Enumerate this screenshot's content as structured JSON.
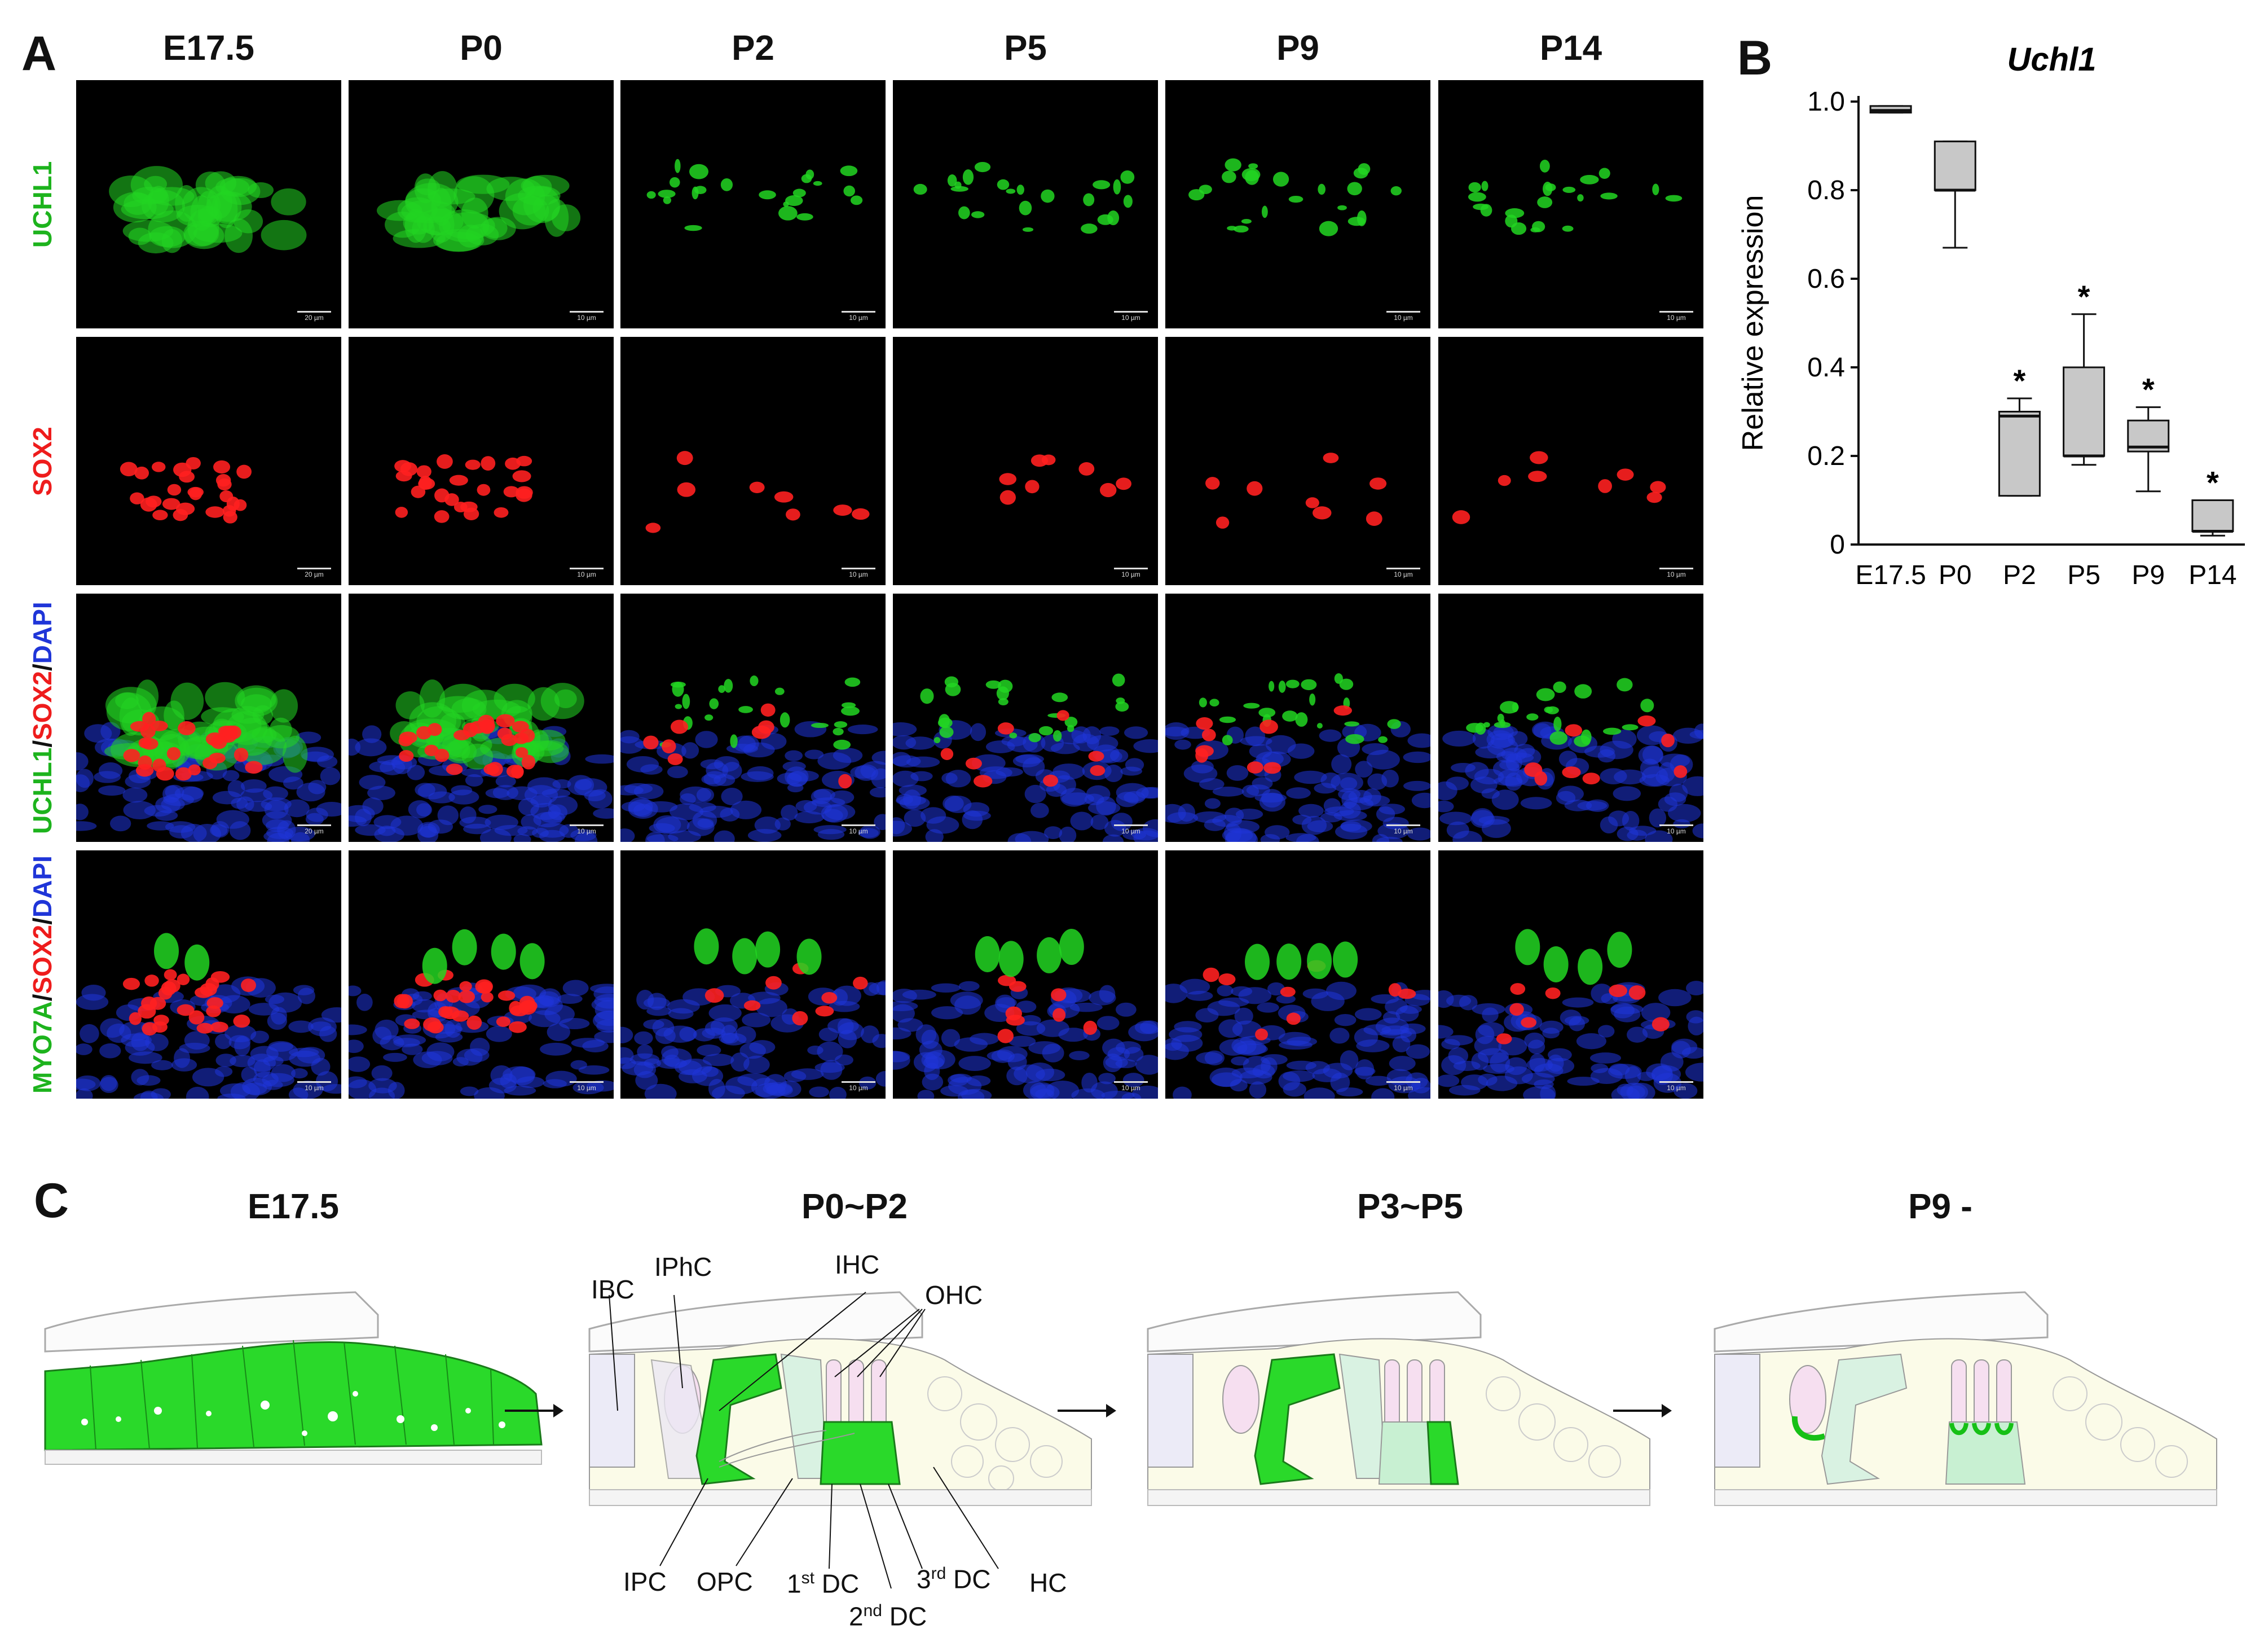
{
  "panel_labels": {
    "a": "A",
    "b": "B",
    "c": "C"
  },
  "columns": [
    "E17.5",
    "P0",
    "P2",
    "P5",
    "P9",
    "P14"
  ],
  "rows": [
    {
      "parts": [
        {
          "text": "UCHL1",
          "color": "#1db31d"
        }
      ]
    },
    {
      "parts": [
        {
          "text": "SOX2",
          "color": "#ee1c1c"
        }
      ]
    },
    {
      "parts": [
        {
          "text": "UCHL1",
          "color": "#1db31d"
        },
        {
          "text": "/",
          "color": "#111111"
        },
        {
          "text": "SOX2",
          "color": "#ee1c1c"
        },
        {
          "text": "/",
          "color": "#111111"
        },
        {
          "text": "DAPI",
          "color": "#1f35d8"
        }
      ]
    },
    {
      "parts": [
        {
          "text": "MYO7A",
          "color": "#1db31d"
        },
        {
          "text": "/",
          "color": "#111111"
        },
        {
          "text": "SOX2",
          "color": "#ee1c1c"
        },
        {
          "text": "/",
          "color": "#111111"
        },
        {
          "text": "DAPI",
          "color": "#1f35d8"
        }
      ]
    }
  ],
  "scale_bars": [
    [
      "20 µm",
      "10 µm",
      "10 µm",
      "10 µm",
      "10 µm",
      "10 µm"
    ],
    [
      "20 µm",
      "10 µm",
      "10 µm",
      "10 µm",
      "10 µm",
      "10 µm"
    ],
    [
      "20 µm",
      "10 µm",
      "10 µm",
      "10 µm",
      "10 µm",
      "10 µm"
    ],
    [
      "10 µm",
      "10 µm",
      "10 µm",
      "10 µm",
      "10 µm",
      "10 µm"
    ]
  ],
  "chart_data": {
    "type": "box",
    "title": "Uchl1",
    "ylabel": "Relative expression",
    "xlabel": "",
    "ylim": [
      0,
      1.0
    ],
    "yticks": [
      "0",
      "0.2",
      "0.4",
      "0.6",
      "0.8",
      "1.0"
    ],
    "categories": [
      "E17.5",
      "P0",
      "P2",
      "P5",
      "P9",
      "P14"
    ],
    "boxes": [
      {
        "category": "E17.5",
        "min": 0.975,
        "q1": 0.975,
        "median": 0.98,
        "q3": 0.99,
        "max": 0.99,
        "significant": false
      },
      {
        "category": "P0",
        "min": 0.67,
        "q1": 0.8,
        "median": 0.8,
        "q3": 0.91,
        "max": 0.91,
        "significant": false
      },
      {
        "category": "P2",
        "min": 0.11,
        "q1": 0.11,
        "median": 0.29,
        "q3": 0.3,
        "max": 0.33,
        "significant": true
      },
      {
        "category": "P5",
        "min": 0.18,
        "q1": 0.2,
        "median": 0.2,
        "q3": 0.4,
        "max": 0.52,
        "significant": true
      },
      {
        "category": "P9",
        "min": 0.12,
        "q1": 0.21,
        "median": 0.22,
        "q3": 0.28,
        "max": 0.31,
        "significant": true
      },
      {
        "category": "P14",
        "min": 0.02,
        "q1": 0.03,
        "median": 0.03,
        "q3": 0.1,
        "max": 0.1,
        "significant": true
      }
    ],
    "significance_marker": "*",
    "grid": false,
    "legend": "none"
  },
  "diagram": {
    "stages": [
      "E17.5",
      "P0~P2",
      "P3~P5",
      "P9 -"
    ],
    "labels_top": [
      "IBC",
      "IPhC",
      "IHC",
      "OHC"
    ],
    "labels_bottom": [
      "IPC",
      "OPC",
      "HC"
    ],
    "dc_labels": [
      {
        "num": "1",
        "sup": "st",
        "text": " DC"
      },
      {
        "num": "2",
        "sup": "nd",
        "text": " DC"
      },
      {
        "num": "3",
        "sup": "rd",
        "text": " DC"
      }
    ]
  }
}
